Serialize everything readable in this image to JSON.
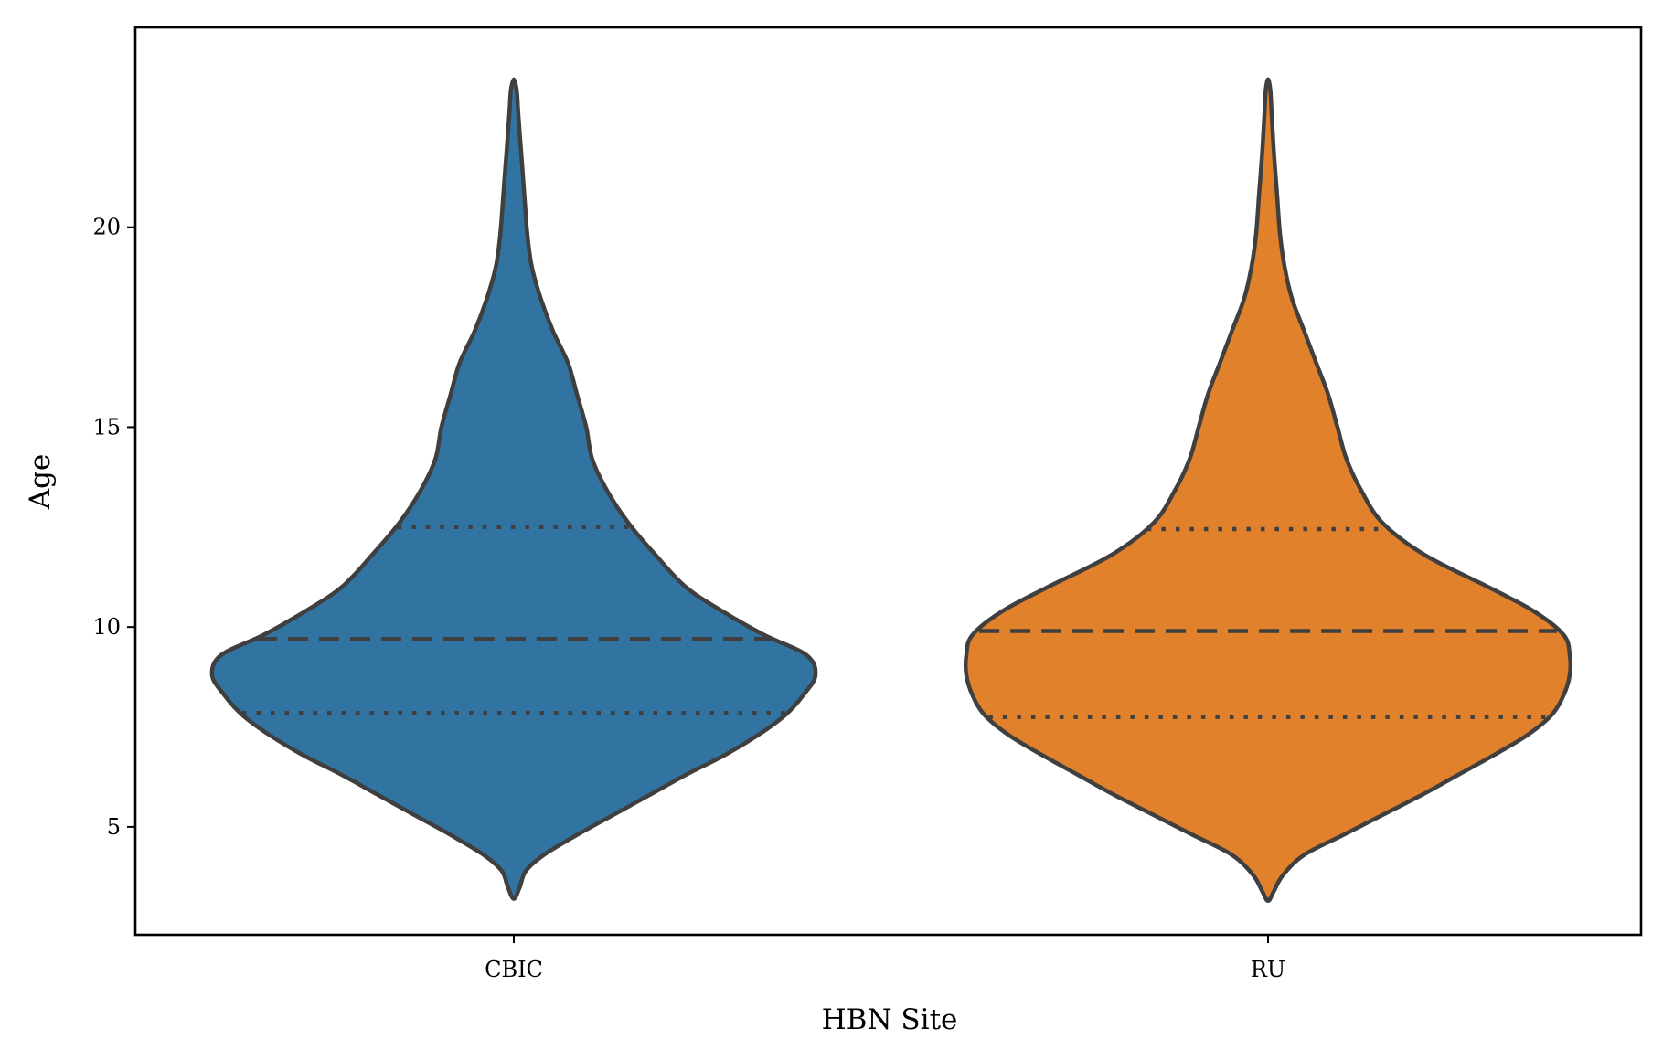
{
  "chart_data": {
    "type": "violin",
    "xlabel": "HBN Site",
    "ylabel": "Age",
    "ylim": [
      2.3,
      25.0
    ],
    "yticks": [
      5,
      10,
      15,
      20
    ],
    "categories": [
      "CBIC",
      "RU"
    ],
    "grid": false,
    "legend": "none",
    "inner": "quartile",
    "outline_color": "#3f3f3f",
    "violins": [
      {
        "category": "CBIC",
        "color": "#3274a1",
        "min": 3.2,
        "max": 23.7,
        "quartiles": {
          "q1": 7.85,
          "median": 9.7,
          "q3": 12.5
        },
        "density_profile": [
          [
            3.2,
            0.0
          ],
          [
            3.5,
            0.02
          ],
          [
            3.9,
            0.04
          ],
          [
            4.3,
            0.1
          ],
          [
            4.8,
            0.21
          ],
          [
            5.3,
            0.33
          ],
          [
            5.8,
            0.45
          ],
          [
            6.3,
            0.57
          ],
          [
            6.8,
            0.7
          ],
          [
            7.3,
            0.81
          ],
          [
            7.8,
            0.9
          ],
          [
            8.3,
            0.96
          ],
          [
            8.8,
            1.0
          ],
          [
            9.3,
            0.97
          ],
          [
            9.8,
            0.83
          ],
          [
            10.4,
            0.69
          ],
          [
            11.0,
            0.57
          ],
          [
            11.8,
            0.47
          ],
          [
            12.6,
            0.38
          ],
          [
            13.4,
            0.31
          ],
          [
            14.2,
            0.26
          ],
          [
            15.0,
            0.24
          ],
          [
            15.8,
            0.21
          ],
          [
            16.6,
            0.18
          ],
          [
            17.4,
            0.13
          ],
          [
            18.2,
            0.09
          ],
          [
            19.0,
            0.06
          ],
          [
            19.8,
            0.045
          ],
          [
            20.8,
            0.035
          ],
          [
            21.8,
            0.025
          ],
          [
            22.8,
            0.015
          ],
          [
            23.4,
            0.01
          ],
          [
            23.7,
            0.0
          ]
        ]
      },
      {
        "category": "RU",
        "color": "#e1812c",
        "min": 3.15,
        "max": 23.7,
        "quartiles": {
          "q1": 7.75,
          "median": 9.9,
          "q3": 12.45
        },
        "density_profile": [
          [
            3.15,
            0.0
          ],
          [
            3.4,
            0.02
          ],
          [
            3.8,
            0.05
          ],
          [
            4.3,
            0.12
          ],
          [
            4.8,
            0.25
          ],
          [
            5.3,
            0.38
          ],
          [
            5.8,
            0.51
          ],
          [
            6.3,
            0.63
          ],
          [
            6.8,
            0.75
          ],
          [
            7.3,
            0.86
          ],
          [
            7.8,
            0.94
          ],
          [
            8.3,
            0.98
          ],
          [
            8.8,
            1.0
          ],
          [
            9.3,
            1.0
          ],
          [
            9.8,
            0.98
          ],
          [
            10.4,
            0.88
          ],
          [
            11.0,
            0.73
          ],
          [
            11.8,
            0.52
          ],
          [
            12.6,
            0.38
          ],
          [
            13.4,
            0.31
          ],
          [
            14.2,
            0.26
          ],
          [
            15.0,
            0.23
          ],
          [
            15.8,
            0.2
          ],
          [
            16.6,
            0.16
          ],
          [
            17.4,
            0.12
          ],
          [
            18.2,
            0.08
          ],
          [
            19.0,
            0.055
          ],
          [
            19.8,
            0.04
          ],
          [
            20.8,
            0.03
          ],
          [
            21.8,
            0.02
          ],
          [
            22.8,
            0.012
          ],
          [
            23.4,
            0.008
          ],
          [
            23.7,
            0.0
          ]
        ]
      }
    ]
  }
}
